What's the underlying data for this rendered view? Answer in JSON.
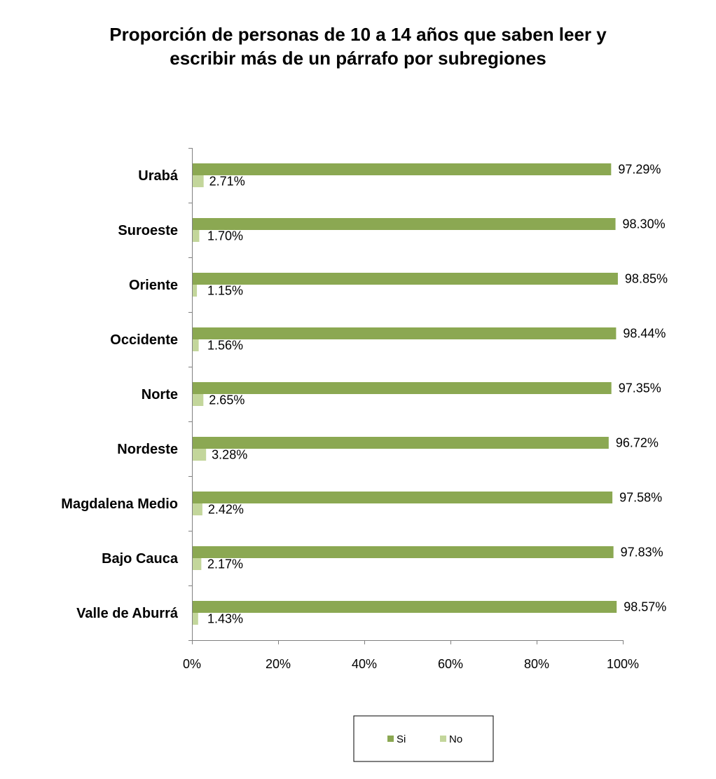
{
  "chart_data": {
    "type": "bar",
    "orientation": "horizontal",
    "title_lines": [
      "Proporción de personas de 10 a 14 años que saben leer y",
      "escribir más de un párrafo por subregiones"
    ],
    "categories": [
      "Urabá",
      "Suroeste",
      "Oriente",
      "Occidente",
      "Norte",
      "Nordeste",
      "Magdalena Medio",
      "Bajo Cauca",
      "Valle de Aburrá"
    ],
    "series": [
      {
        "name": "Si",
        "color": "#8BA852",
        "values": [
          97.29,
          98.3,
          98.85,
          98.44,
          97.35,
          96.72,
          97.58,
          97.83,
          98.57
        ],
        "labels": [
          "97.29%",
          "98.30%",
          "98.85%",
          "98.44%",
          "97.35%",
          "96.72%",
          "97.58%",
          "97.83%",
          "98.57%"
        ]
      },
      {
        "name": "No",
        "color": "#C3D69B",
        "values": [
          2.71,
          1.7,
          1.15,
          1.56,
          2.65,
          3.28,
          2.42,
          2.17,
          1.43
        ],
        "labels": [
          "2.71%",
          "1.70%",
          "1.15%",
          "1.56%",
          "2.65%",
          "3.28%",
          "2.42%",
          "2.17%",
          "1.43%"
        ]
      }
    ],
    "xlim": [
      0,
      100
    ],
    "x_ticks": [
      0,
      20,
      40,
      60,
      80,
      100
    ],
    "x_tick_labels": [
      "0%",
      "20%",
      "40%",
      "60%",
      "80%",
      "100%"
    ],
    "grid": false,
    "legend_position": "bottom"
  }
}
